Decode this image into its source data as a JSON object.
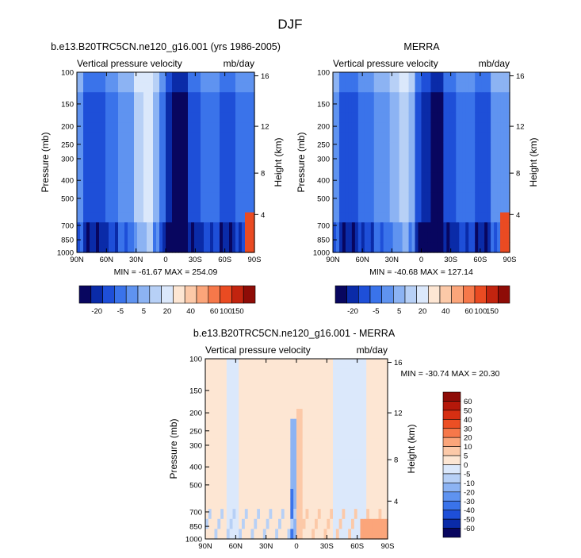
{
  "figure_title": "DJF",
  "chart_data": [
    {
      "type": "heatmap",
      "title": "b.e13.B20TRC5CN.ne120_g16.001 (yrs 1986-2005)",
      "subtitle_left": "Vertical pressure velocity",
      "subtitle_right": "mb/day",
      "ylabel": "Pressure (mb)",
      "ylabel_right": "Height (km)",
      "x_ticks": [
        "90N",
        "60N",
        "30N",
        "0",
        "30S",
        "60S",
        "90S"
      ],
      "y_ticks": [
        "100",
        "150",
        "200",
        "250",
        "300",
        "400",
        "500",
        "700",
        "850",
        "1000"
      ],
      "y2_ticks": [
        "16",
        "12",
        "8",
        "4"
      ],
      "min_max_text": "MIN = -61.67  MAX = 254.09",
      "colorbar_labels": [
        "-20",
        "-5",
        "5",
        "20",
        "40",
        "60",
        "100",
        "150"
      ]
    },
    {
      "type": "heatmap",
      "title": "MERRA",
      "subtitle_left": "Vertical pressure velocity",
      "subtitle_right": "mb/day",
      "ylabel": "Pressure (mb)",
      "ylabel_right": "Height (km)",
      "x_ticks": [
        "90N",
        "60N",
        "30N",
        "0",
        "30S",
        "60S",
        "90S"
      ],
      "y_ticks": [
        "100",
        "150",
        "200",
        "250",
        "300",
        "400",
        "500",
        "700",
        "850",
        "1000"
      ],
      "y2_ticks": [
        "16",
        "12",
        "8",
        "4"
      ],
      "min_max_text": "MIN = -40.68  MAX = 127.14",
      "colorbar_labels": [
        "-20",
        "-5",
        "5",
        "20",
        "40",
        "60",
        "100",
        "150"
      ]
    },
    {
      "type": "heatmap",
      "title": "b.e13.B20TRC5CN.ne120_g16.001 - MERRA",
      "subtitle_left": "Vertical pressure velocity",
      "subtitle_right": "mb/day",
      "ylabel": "Pressure (mb)",
      "ylabel_right": "Height (km)",
      "x_ticks": [
        "90N",
        "60N",
        "30N",
        "0",
        "30S",
        "60S",
        "90S"
      ],
      "y_ticks": [
        "100",
        "150",
        "200",
        "250",
        "300",
        "400",
        "500",
        "700",
        "850",
        "1000"
      ],
      "y2_ticks": [
        "16",
        "12",
        "8",
        "4"
      ],
      "min_max_text": "MIN = -30.74  MAX = 20.30",
      "colorbar_labels": [
        "60",
        "50",
        "40",
        "30",
        "20",
        "10",
        "5",
        "0",
        "-5",
        "-10",
        "-20",
        "-30",
        "-40",
        "-50",
        "-60"
      ]
    }
  ],
  "colors": {
    "abs_scale": [
      "#08065f",
      "#0a2ba8",
      "#1e4fd8",
      "#3a73ea",
      "#5f93f0",
      "#8cb3f3",
      "#b7d0f6",
      "#dbe8fb",
      "#fde6d3",
      "#fcc9a8",
      "#fba57a",
      "#f6784a",
      "#ea4b22",
      "#c2240f",
      "#8e0c07"
    ],
    "diff_scale": [
      "#8e0c07",
      "#b5180a",
      "#d62f12",
      "#ec4f24",
      "#f6784a",
      "#fba57a",
      "#fcc9a8",
      "#fde6d3",
      "#dbe8fb",
      "#b7d0f6",
      "#8cb3f3",
      "#5f93f0",
      "#3a73ea",
      "#1e4fd8",
      "#0a2ba8",
      "#08065f"
    ]
  }
}
